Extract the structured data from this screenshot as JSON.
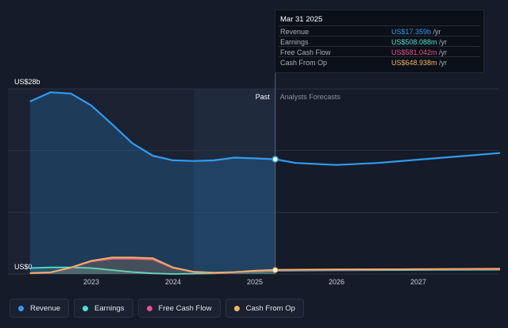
{
  "tooltip": {
    "date": "Mar 31 2025",
    "rows": [
      {
        "label": "Revenue",
        "value": "US$17.359b",
        "unit": " /yr",
        "color": "#2f9bf0"
      },
      {
        "label": "Earnings",
        "value": "US$508.088m",
        "unit": " /yr",
        "color": "#4fe0d0"
      },
      {
        "label": "Free Cash Flow",
        "value": "US$581.042m",
        "unit": " /yr",
        "color": "#e8508a"
      },
      {
        "label": "Cash From Op",
        "value": "US$648.938m",
        "unit": " /yr",
        "color": "#f3b462"
      }
    ]
  },
  "legend": [
    {
      "label": "Revenue",
      "color": "#2f9bf0"
    },
    {
      "label": "Earnings",
      "color": "#4fe0d0"
    },
    {
      "label": "Free Cash Flow",
      "color": "#e8508a"
    },
    {
      "label": "Cash From Op",
      "color": "#f3b462"
    }
  ],
  "chart_data": {
    "type": "area",
    "ylim": [
      0,
      28
    ],
    "y_unit": "US$ billions",
    "y_tick_labels": [
      {
        "value": 28,
        "label": "US$28b"
      },
      {
        "value": 0,
        "label": "US$0"
      }
    ],
    "x_tick_labels": [
      "2023",
      "2024",
      "2025",
      "2026",
      "2027"
    ],
    "divider_x": 2025.25,
    "past_label": "Past",
    "forecast_label": "Analysts Forecasts",
    "highlight": {
      "x": 2025.25,
      "series": "Revenue",
      "value": 17.359
    },
    "series": [
      {
        "name": "Revenue",
        "color": "#2f9bf0",
        "filled": true,
        "x": [
          2022.25,
          2022.5,
          2022.75,
          2023.0,
          2023.25,
          2023.5,
          2023.75,
          2024.0,
          2024.25,
          2024.5,
          2024.75,
          2025.0,
          2025.25,
          2025.5,
          2026.0,
          2026.5,
          2027.0,
          2027.5,
          2028.0
        ],
        "y": [
          26.1,
          27.5,
          27.3,
          25.5,
          22.7,
          19.8,
          17.9,
          17.2,
          17.1,
          17.2,
          17.6,
          17.5,
          17.359,
          16.8,
          16.5,
          16.8,
          17.3,
          17.8,
          18.3
        ]
      },
      {
        "name": "Earnings",
        "color": "#4fe0d0",
        "filled": true,
        "x": [
          2022.25,
          2022.5,
          2022.75,
          2023.0,
          2023.25,
          2023.5,
          2023.75,
          2024.0,
          2024.25,
          2024.5,
          2024.75,
          2025.0,
          2025.25,
          2026.0,
          2027.0,
          2028.0
        ],
        "y": [
          0.9,
          1.0,
          1.0,
          0.9,
          0.6,
          0.3,
          0.1,
          0.0,
          0.05,
          0.1,
          0.25,
          0.4,
          0.508,
          0.55,
          0.6,
          0.65
        ]
      },
      {
        "name": "Free Cash Flow",
        "color": "#e8508a",
        "filled": false,
        "x": [
          2022.25,
          2022.5,
          2022.75,
          2023.0,
          2023.25,
          2023.5,
          2023.75,
          2024.0,
          2024.25,
          2024.5,
          2024.75,
          2025.0,
          2025.25,
          2026.0,
          2027.0,
          2028.0
        ],
        "y": [
          0.1,
          0.2,
          0.9,
          1.9,
          2.3,
          2.3,
          2.2,
          0.9,
          0.3,
          0.15,
          0.25,
          0.45,
          0.581,
          0.63,
          0.68,
          0.72
        ]
      },
      {
        "name": "Cash From Op",
        "color": "#f3b462",
        "filled": true,
        "x": [
          2022.25,
          2022.5,
          2022.75,
          2023.0,
          2023.25,
          2023.5,
          2023.75,
          2024.0,
          2024.25,
          2024.5,
          2024.75,
          2025.0,
          2025.25,
          2026.0,
          2027.0,
          2028.0
        ],
        "y": [
          0.15,
          0.25,
          1.0,
          2.0,
          2.5,
          2.5,
          2.4,
          1.0,
          0.35,
          0.2,
          0.3,
          0.5,
          0.649,
          0.7,
          0.75,
          0.8
        ]
      }
    ]
  }
}
